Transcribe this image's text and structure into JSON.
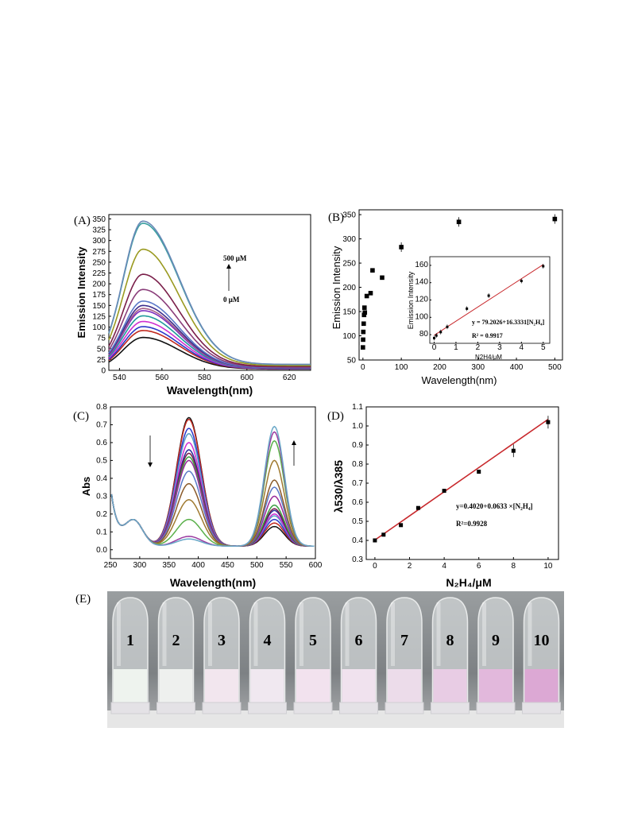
{
  "chart_data": [
    {
      "panel": "(A)",
      "type": "line",
      "xlabel": "Wavelength(nm)",
      "ylabel": "Emission Intensity",
      "xlim": [
        535,
        630
      ],
      "ylim": [
        0,
        360
      ],
      "xticks": [
        540,
        560,
        580,
        600,
        620
      ],
      "yticks": [
        0,
        25,
        50,
        75,
        100,
        125,
        150,
        175,
        200,
        225,
        250,
        275,
        300,
        325,
        350
      ],
      "peak_x": 551,
      "annotations": [
        "500 μM",
        "0 μM"
      ],
      "series": [
        {
          "peak": 76,
          "color": "#111111"
        },
        {
          "peak": 92,
          "color": "#c0281e"
        },
        {
          "peak": 101,
          "color": "#2a38c8"
        },
        {
          "peak": 113,
          "color": "#cf2ed0"
        },
        {
          "peak": 126,
          "color": "#1e9a9a"
        },
        {
          "peak": 138,
          "color": "#7b2fbf"
        },
        {
          "peak": 143,
          "color": "#a85f8a"
        },
        {
          "peak": 150,
          "color": "#3c2d8c"
        },
        {
          "peak": 160,
          "color": "#5a78c8"
        },
        {
          "peak": 187,
          "color": "#8a3e7a"
        },
        {
          "peak": 222,
          "color": "#7a1f4a"
        },
        {
          "peak": 280,
          "color": "#9a9a20"
        },
        {
          "peak": 340,
          "color": "#3aa0a0"
        },
        {
          "peak": 345,
          "color": "#6a8ab8"
        }
      ]
    },
    {
      "panel": "(B)",
      "type": "scatter",
      "xlabel": "Wavelength(nm)",
      "ylabel": "Emission Intensity",
      "xlim": [
        -10,
        520
      ],
      "ylim": [
        50,
        360
      ],
      "xticks": [
        0,
        100,
        200,
        300,
        400,
        500
      ],
      "yticks": [
        50,
        100,
        150,
        200,
        250,
        300,
        350
      ],
      "points": [
        {
          "x": 0,
          "y": 76
        },
        {
          "x": 0.5,
          "y": 92
        },
        {
          "x": 1,
          "y": 108
        },
        {
          "x": 2,
          "y": 125
        },
        {
          "x": 3,
          "y": 143
        },
        {
          "x": 4,
          "y": 158
        },
        {
          "x": 5,
          "y": 148
        },
        {
          "x": 10,
          "y": 182
        },
        {
          "x": 20,
          "y": 188
        },
        {
          "x": 25,
          "y": 235
        },
        {
          "x": 50,
          "y": 220
        },
        {
          "x": 100,
          "y": 283
        },
        {
          "x": 250,
          "y": 335
        },
        {
          "x": 500,
          "y": 341
        }
      ],
      "inset": {
        "type": "scatter",
        "xlabel": "N2H4/μM",
        "ylabel": "Emission Intensity",
        "xlim": [
          -0.2,
          5.3
        ],
        "ylim": [
          70,
          170
        ],
        "xticks": [
          0,
          1,
          2,
          3,
          4,
          5
        ],
        "yticks": [
          80,
          100,
          120,
          140,
          160
        ],
        "points": [
          {
            "x": 0,
            "y": 76
          },
          {
            "x": 0.1,
            "y": 79
          },
          {
            "x": 0.3,
            "y": 83
          },
          {
            "x": 0.6,
            "y": 89
          },
          {
            "x": 1.5,
            "y": 110
          },
          {
            "x": 2.5,
            "y": 125
          },
          {
            "x": 4,
            "y": 142
          },
          {
            "x": 5,
            "y": 159
          }
        ],
        "fit": {
          "intercept": 79.2026,
          "slope": 16.3331
        },
        "equation": "y = 79.2026+16.3331[N₂H₄]",
        "r2": "R² = 0.9917"
      }
    },
    {
      "panel": "(C)",
      "type": "line",
      "xlabel": "Wavelength(nm)",
      "ylabel": "Abs",
      "xlim": [
        250,
        600
      ],
      "ylim": [
        -0.05,
        0.8
      ],
      "xticks": [
        250,
        300,
        350,
        400,
        450,
        500,
        550,
        600
      ],
      "yticks": [
        0.0,
        0.1,
        0.2,
        0.3,
        0.4,
        0.5,
        0.6,
        0.7,
        0.8
      ],
      "series": [
        {
          "a": 0.72,
          "b": 0.11,
          "color": "#111111"
        },
        {
          "a": 0.71,
          "b": 0.13,
          "color": "#c0281e"
        },
        {
          "a": 0.66,
          "b": 0.15,
          "color": "#2a38c8"
        },
        {
          "a": 0.63,
          "b": 0.17,
          "color": "#5aa0c8"
        },
        {
          "a": 0.58,
          "b": 0.18,
          "color": "#cf2ed0"
        },
        {
          "a": 0.54,
          "b": 0.2,
          "color": "#2a2a9a"
        },
        {
          "a": 0.52,
          "b": 0.21,
          "color": "#7a1f4a"
        },
        {
          "a": 0.5,
          "b": 0.23,
          "color": "#3aa040"
        },
        {
          "a": 0.48,
          "b": 0.28,
          "color": "#9a2a9a"
        },
        {
          "a": 0.42,
          "b": 0.33,
          "color": "#5a78c8"
        },
        {
          "a": 0.35,
          "b": 0.37,
          "color": "#8a5a2a"
        },
        {
          "a": 0.26,
          "b": 0.48,
          "color": "#a07a30"
        },
        {
          "a": 0.15,
          "b": 0.59,
          "color": "#5ab04a"
        },
        {
          "a": 0.055,
          "b": 0.64,
          "color": "#9a3aa0"
        },
        {
          "a": 0.04,
          "b": 0.67,
          "color": "#6aa8c8"
        }
      ]
    },
    {
      "panel": "(D)",
      "type": "scatter",
      "xlabel": "N₂H₄/μM",
      "ylabel": "λ530/λ385",
      "xlim": [
        -0.5,
        10.6
      ],
      "ylim": [
        0.3,
        1.1
      ],
      "xticks": [
        0,
        2,
        4,
        6,
        8,
        10
      ],
      "yticks": [
        0.3,
        0.4,
        0.5,
        0.6,
        0.7,
        0.8,
        0.9,
        1.0,
        1.1
      ],
      "points": [
        {
          "x": 0,
          "y": 0.4
        },
        {
          "x": 0.5,
          "y": 0.43
        },
        {
          "x": 1.5,
          "y": 0.48
        },
        {
          "x": 2.5,
          "y": 0.57
        },
        {
          "x": 4,
          "y": 0.66
        },
        {
          "x": 6,
          "y": 0.76
        },
        {
          "x": 8,
          "y": 0.87
        },
        {
          "x": 10,
          "y": 1.02
        }
      ],
      "fit": {
        "intercept": 0.402,
        "slope": 0.0633
      },
      "equation": "y=0.4020+0.0633 ×[N₂H₄]",
      "r2": "R²=0.9928"
    }
  ],
  "photo": {
    "panel": "(E)",
    "tube_labels": [
      "1",
      "2",
      "3",
      "4",
      "5",
      "6",
      "7",
      "8",
      "9",
      "10"
    ],
    "liquid_colors": [
      "#eef3ee",
      "#eef0ee",
      "#f2e6ee",
      "#f0e8f0",
      "#f2e2ee",
      "#f0e2ee",
      "#ecdcea",
      "#e8cce4",
      "#e2b8dc",
      "#dca8d4"
    ]
  }
}
